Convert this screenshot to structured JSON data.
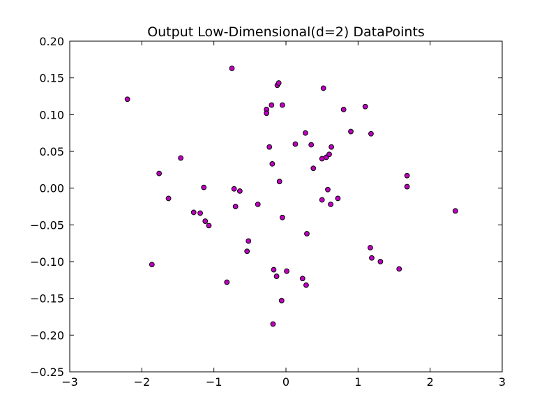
{
  "chart_data": {
    "type": "scatter",
    "title": "Output Low-Dimensional(d=2) DataPoints",
    "xlabel": "",
    "ylabel": "",
    "xlim": [
      -3,
      3
    ],
    "ylim": [
      -0.25,
      0.2
    ],
    "xticks": [
      -3,
      -2,
      -1,
      0,
      1,
      2,
      3
    ],
    "xtick_labels": [
      "−3",
      "−2",
      "−1",
      "0",
      "1",
      "2",
      "3"
    ],
    "yticks": [
      -0.25,
      -0.2,
      -0.15,
      -0.1,
      -0.05,
      0.0,
      0.05,
      0.1,
      0.15,
      0.2
    ],
    "ytick_labels": [
      "−0.25",
      "−0.20",
      "−0.15",
      "−0.10",
      "−0.05",
      "0.00",
      "0.05",
      "0.10",
      "0.15",
      "0.20"
    ],
    "grid": false,
    "marker_color": "#c000c0",
    "points": [
      [
        -2.2,
        0.121
      ],
      [
        -0.75,
        0.163
      ],
      [
        -1.76,
        0.02
      ],
      [
        -1.46,
        0.041
      ],
      [
        -1.63,
        -0.014
      ],
      [
        -1.14,
        0.001
      ],
      [
        -1.28,
        -0.033
      ],
      [
        -1.19,
        -0.034
      ],
      [
        -1.12,
        -0.045
      ],
      [
        -1.07,
        -0.051
      ],
      [
        -1.86,
        -0.104
      ],
      [
        -0.82,
        -0.128
      ],
      [
        -0.72,
        -0.001
      ],
      [
        -0.64,
        -0.004
      ],
      [
        -0.7,
        -0.025
      ],
      [
        -0.39,
        -0.022
      ],
      [
        -0.52,
        -0.072
      ],
      [
        -0.54,
        -0.086
      ],
      [
        -0.27,
        0.107
      ],
      [
        -0.27,
        0.102
      ],
      [
        -0.2,
        0.113
      ],
      [
        -0.12,
        0.14
      ],
      [
        -0.1,
        0.143
      ],
      [
        -0.05,
        0.113
      ],
      [
        -0.23,
        0.056
      ],
      [
        -0.19,
        0.033
      ],
      [
        -0.09,
        0.009
      ],
      [
        -0.05,
        -0.04
      ],
      [
        -0.17,
        -0.111
      ],
      [
        -0.13,
        -0.12
      ],
      [
        0.01,
        -0.113
      ],
      [
        -0.06,
        -0.153
      ],
      [
        -0.18,
        -0.185
      ],
      [
        0.13,
        0.06
      ],
      [
        0.27,
        0.075
      ],
      [
        0.35,
        0.059
      ],
      [
        0.38,
        0.027
      ],
      [
        0.5,
        0.04
      ],
      [
        0.56,
        0.042
      ],
      [
        0.6,
        0.046
      ],
      [
        0.63,
        0.056
      ],
      [
        0.52,
        0.136
      ],
      [
        0.58,
        -0.002
      ],
      [
        0.72,
        -0.014
      ],
      [
        0.5,
        -0.016
      ],
      [
        0.62,
        -0.022
      ],
      [
        0.29,
        -0.062
      ],
      [
        0.23,
        -0.123
      ],
      [
        0.28,
        -0.132
      ],
      [
        0.8,
        0.107
      ],
      [
        0.9,
        0.077
      ],
      [
        1.1,
        0.111
      ],
      [
        1.18,
        0.074
      ],
      [
        1.17,
        -0.081
      ],
      [
        1.19,
        -0.095
      ],
      [
        1.31,
        -0.1
      ],
      [
        1.57,
        -0.11
      ],
      [
        1.68,
        0.017
      ],
      [
        1.68,
        0.002
      ],
      [
        2.35,
        -0.031
      ]
    ]
  }
}
